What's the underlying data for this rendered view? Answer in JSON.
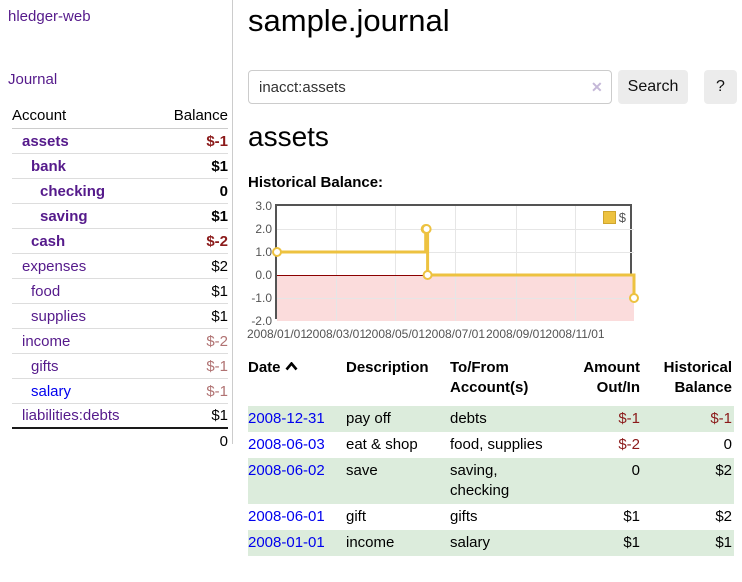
{
  "app": {
    "brand": "hledger-web"
  },
  "sidebar": {
    "journal_link": "Journal",
    "accounts": {
      "header_account": "Account",
      "header_balance": "Balance",
      "rows": [
        {
          "name": "assets",
          "balance": "$-1"
        },
        {
          "name": "bank",
          "balance": "$1"
        },
        {
          "name": "checking",
          "balance": "0"
        },
        {
          "name": "saving",
          "balance": "$1"
        },
        {
          "name": "cash",
          "balance": "$-2"
        },
        {
          "name": "expenses",
          "balance": "$2"
        },
        {
          "name": "food",
          "balance": "$1"
        },
        {
          "name": "supplies",
          "balance": "$1"
        },
        {
          "name": "income",
          "balance": "$-2"
        },
        {
          "name": "gifts",
          "balance": "$-1"
        },
        {
          "name": "salary",
          "balance": "$-1"
        },
        {
          "name": "liabilities:debts",
          "balance": "$1"
        }
      ],
      "total": "0"
    }
  },
  "main": {
    "title": "sample.journal",
    "search": {
      "value": "inacct:assets",
      "clear_icon": "✕",
      "button": "Search",
      "help": "?"
    },
    "account_heading": "assets",
    "chart_title": "Historical Balance:"
  },
  "chart_data": {
    "type": "line",
    "step": true,
    "title": "Historical Balance:",
    "series": [
      {
        "name": "$",
        "color": "#edc240",
        "points": [
          {
            "x": "2008-01-01",
            "y": 1
          },
          {
            "x": "2008-06-01",
            "y": 2
          },
          {
            "x": "2008-06-02",
            "y": 2
          },
          {
            "x": "2008-06-03",
            "y": 0
          },
          {
            "x": "2008-12-31",
            "y": -1
          }
        ]
      }
    ],
    "xrange": [
      "2008-01-01",
      "2008-12-31"
    ],
    "ylim": [
      -2,
      3
    ],
    "yticks": [
      "3.0",
      "2.0",
      "1.0",
      "0.0",
      "-1.0",
      "-2.0"
    ],
    "xticks": [
      "2008/01/01",
      "2008/03/01",
      "2008/05/01",
      "2008/07/01",
      "2008/09/01",
      "2008/11/01"
    ],
    "grid": true,
    "legend_position": "top-right",
    "negative_region_color": "#fbdcdc",
    "zero_line_color": "#8b0000"
  },
  "transactions": {
    "headers": {
      "date": "Date",
      "description": "Description",
      "accounts": "To/From Account(s)",
      "amount": "Amount Out/In",
      "balance": "Historical Balance"
    },
    "rows": [
      {
        "date": "2008-12-31",
        "description": "pay off",
        "accounts": "debts",
        "amount": "$-1",
        "balance": "$-1"
      },
      {
        "date": "2008-06-03",
        "description": "eat & shop",
        "accounts": "food, supplies",
        "amount": "$-2",
        "balance": "0"
      },
      {
        "date": "2008-06-02",
        "description": "save",
        "accounts": "saving, checking",
        "amount": "0",
        "balance": "$2"
      },
      {
        "date": "2008-06-01",
        "description": "gift",
        "accounts": "gifts",
        "amount": "$1",
        "balance": "$2"
      },
      {
        "date": "2008-01-01",
        "description": "income",
        "accounts": "salary",
        "amount": "$1",
        "balance": "$1"
      }
    ]
  },
  "colors": {
    "visited_link_purple": "#551a8b",
    "link_blue": "#0000ee",
    "negative_red": "#8b1a1a",
    "negative_muted": "#b07272",
    "row_green": "#dcecdc",
    "chart_gold": "#edc240",
    "chart_negative_pink": "#fbdcdc",
    "chart_zero_line": "#8b0000",
    "chart_border": "#545454"
  }
}
